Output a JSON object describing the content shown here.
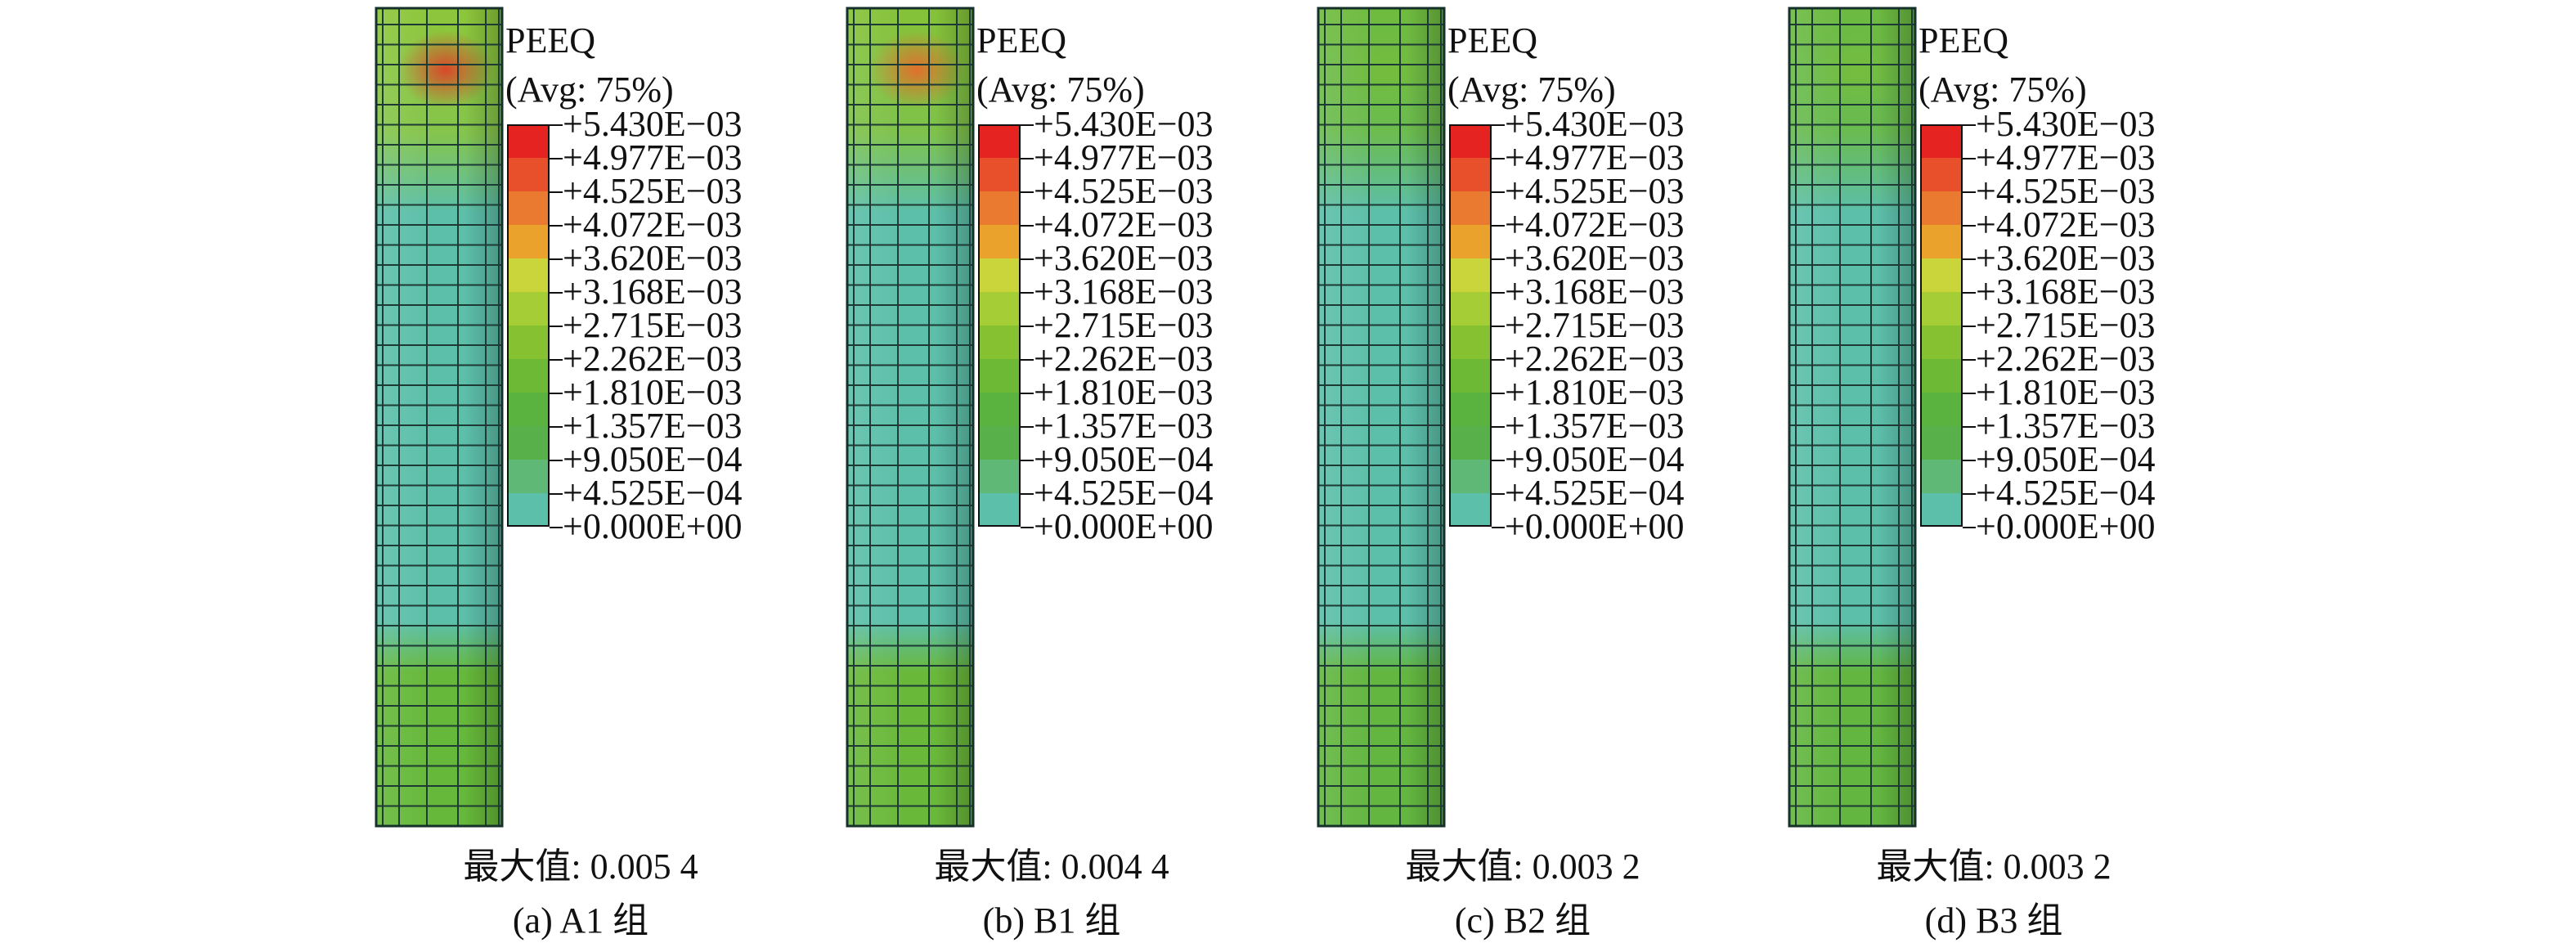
{
  "legend": {
    "title": "PEEQ",
    "subtitle": "(Avg: 75%)",
    "labels": [
      "+5.430E−03",
      "+4.977E−03",
      "+4.525E−03",
      "+4.072E−03",
      "+3.620E−03",
      "+3.168E−03",
      "+2.715E−03",
      "+2.262E−03",
      "+1.810E−03",
      "+1.357E−03",
      "+9.050E−04",
      "+4.525E−04",
      "+0.000E+00"
    ],
    "colors": [
      "#e52421",
      "#e8502c",
      "#ea7a2f",
      "#eaa22c",
      "#c9d53a",
      "#a5cd35",
      "#86c132",
      "#6db834",
      "#5bb33f",
      "#57b04a",
      "#5fb876",
      "#5cbfaa"
    ]
  },
  "panels": [
    {
      "id": "a",
      "max_label": "最大值: 0.005 4",
      "caption": "(a) A1 组",
      "hotspot": "#d9482a",
      "top_band": "#8dc63a",
      "bottom_band": "#66b83a"
    },
    {
      "id": "b",
      "max_label": "最大值: 0.004 4",
      "caption": "(b) B1 组",
      "hotspot": "#e0702c",
      "top_band": "#85c238",
      "bottom_band": "#6ab83a"
    },
    {
      "id": "c",
      "max_label": "最大值: 0.003 2",
      "caption": "(c) B2 组",
      "hotspot": "#74bc3c",
      "top_band": "#6fbb3e",
      "bottom_band": "#63b640"
    },
    {
      "id": "d",
      "max_label": "最大值: 0.003 2",
      "caption": "(d) B3 组",
      "hotspot": "#76bd3e",
      "top_band": "#6cba40",
      "bottom_band": "#63b640"
    }
  ]
}
